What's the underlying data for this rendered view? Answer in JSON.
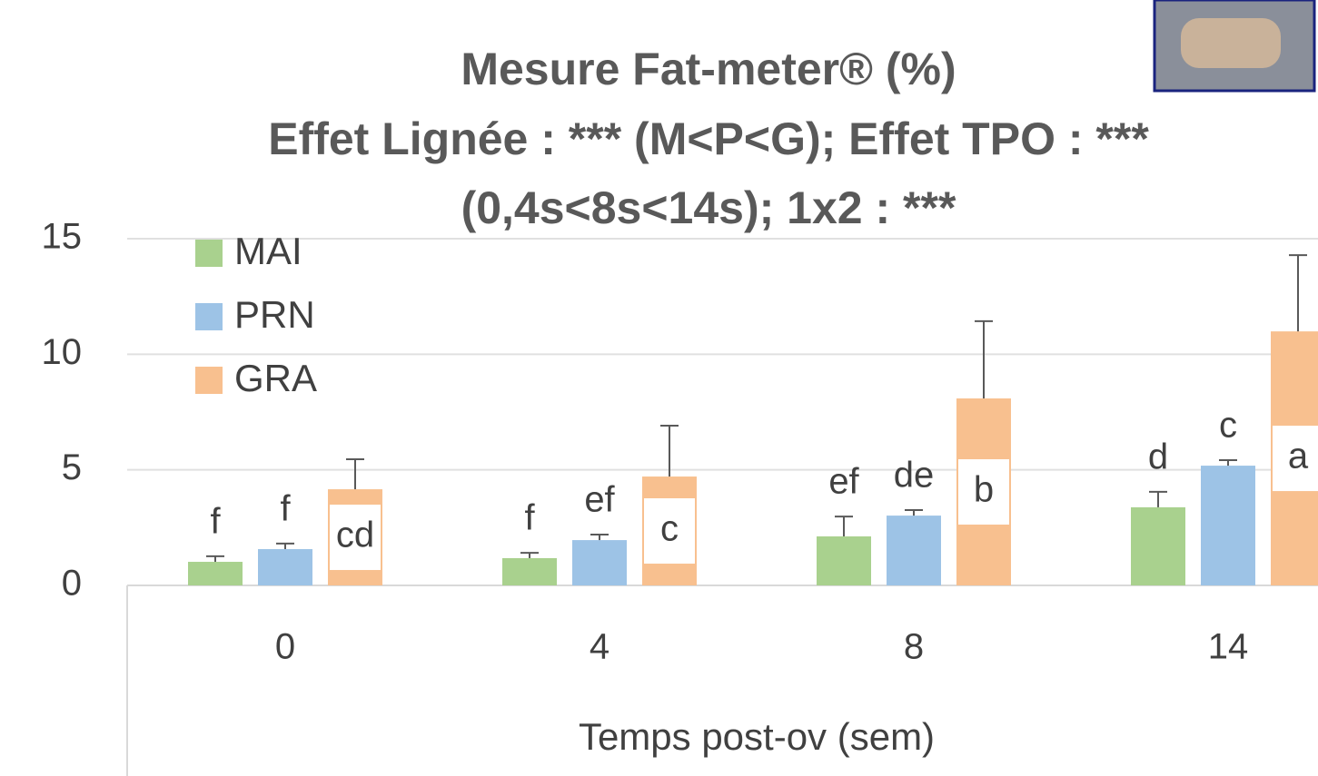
{
  "chart_data": {
    "type": "bar",
    "title_lines": [
      "Mesure Fat-meter® (%)",
      "Effet Lignée : *** (M<P<G); Effet TPO : ***",
      "(0,4s<8s<14s); 1x2 : ***"
    ],
    "x_label": "Temps post-ov (sem)",
    "categories": [
      "0",
      "4",
      "8",
      "14"
    ],
    "series": [
      {
        "name": "MAI",
        "color": "#a9d18e",
        "values": [
          1.02,
          1.18,
          2.12,
          3.38
        ],
        "errors": [
          0.24,
          0.23,
          0.86,
          0.67
        ],
        "letters": [
          "f",
          "f",
          "ef",
          "d"
        ]
      },
      {
        "name": "PRN",
        "color": "#9dc3e6",
        "values": [
          1.57,
          1.96,
          3.02,
          5.18
        ],
        "errors": [
          0.24,
          0.24,
          0.24,
          0.24
        ],
        "letters": [
          "f",
          "ef",
          "de",
          "c"
        ]
      },
      {
        "name": "GRA",
        "color": "#f8c08f",
        "values": [
          4.16,
          4.71,
          8.09,
          10.99
        ],
        "errors": [
          1.3,
          2.2,
          3.34,
          3.3
        ],
        "letters": [
          "cd",
          "c",
          "b",
          "a"
        ]
      }
    ],
    "ylim": [
      0,
      15
    ],
    "yticks": [
      0,
      5,
      10,
      15
    ],
    "grid": true,
    "legend": "top-left"
  }
}
